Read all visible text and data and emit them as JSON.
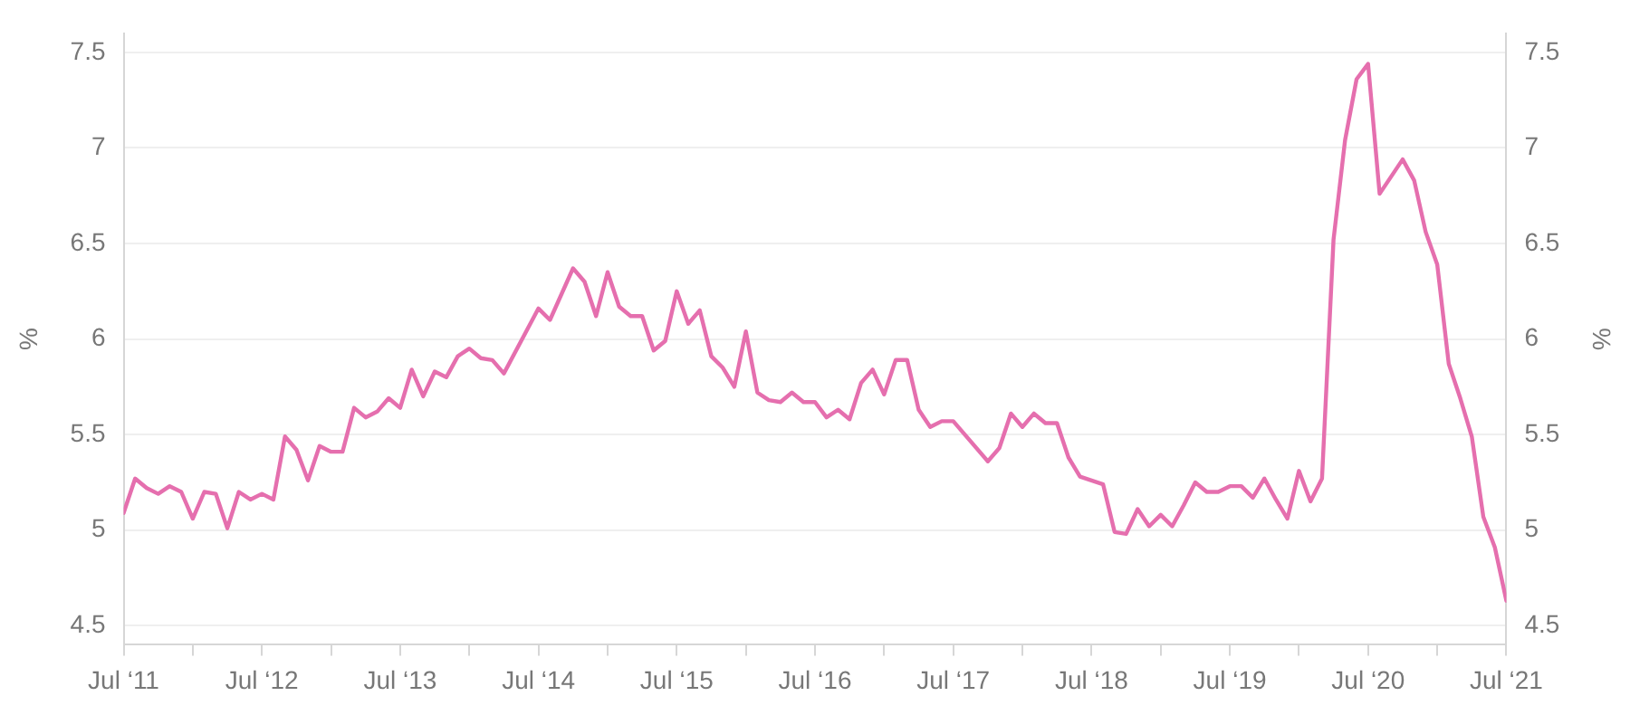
{
  "chart_data": {
    "type": "line",
    "ylabel": "%",
    "y2label": "%",
    "x": [
      "2011-07",
      "2011-08",
      "2011-09",
      "2011-10",
      "2011-11",
      "2011-12",
      "2012-01",
      "2012-02",
      "2012-03",
      "2012-04",
      "2012-05",
      "2012-06",
      "2012-07",
      "2012-08",
      "2012-09",
      "2012-10",
      "2012-11",
      "2012-12",
      "2013-01",
      "2013-02",
      "2013-03",
      "2013-04",
      "2013-05",
      "2013-06",
      "2013-07",
      "2013-08",
      "2013-09",
      "2013-10",
      "2013-11",
      "2013-12",
      "2014-01",
      "2014-02",
      "2014-03",
      "2014-04",
      "2014-07",
      "2014-08",
      "2014-10",
      "2014-11",
      "2014-12",
      "2015-01",
      "2015-02",
      "2015-03",
      "2015-04",
      "2015-05",
      "2015-06",
      "2015-07",
      "2015-08",
      "2015-09",
      "2015-10",
      "2015-11",
      "2015-12",
      "2016-01",
      "2016-02",
      "2016-03",
      "2016-04",
      "2016-05",
      "2016-06",
      "2016-07",
      "2016-08",
      "2016-09",
      "2016-10",
      "2016-11",
      "2016-12",
      "2017-01",
      "2017-02",
      "2017-03",
      "2017-04",
      "2017-05",
      "2017-06",
      "2017-07",
      "2017-10",
      "2017-11",
      "2017-12",
      "2018-01",
      "2018-02",
      "2018-03",
      "2018-04",
      "2018-05",
      "2018-06",
      "2018-07",
      "2018-08",
      "2018-09",
      "2018-10",
      "2018-11",
      "2018-12",
      "2019-01",
      "2019-02",
      "2019-03",
      "2019-04",
      "2019-05",
      "2019-06",
      "2019-07",
      "2019-08",
      "2019-09",
      "2019-10",
      "2019-11",
      "2019-12",
      "2020-01",
      "2020-02",
      "2020-03",
      "2020-04",
      "2020-05",
      "2020-06",
      "2020-07",
      "2020-08",
      "2020-09",
      "2020-10",
      "2020-11",
      "2020-12",
      "2021-01",
      "2021-02",
      "2021-03",
      "2021-04",
      "2021-05",
      "2021-06",
      "2021-07"
    ],
    "series": [
      {
        "color": "#e56fae",
        "values": [
          5.09,
          5.27,
          5.22,
          5.19,
          5.23,
          5.2,
          5.06,
          5.2,
          5.19,
          5.01,
          5.2,
          5.16,
          5.19,
          5.16,
          5.49,
          5.42,
          5.26,
          5.44,
          5.41,
          5.41,
          5.64,
          5.59,
          5.62,
          5.69,
          5.64,
          5.84,
          5.7,
          5.83,
          5.8,
          5.91,
          5.95,
          5.9,
          5.89,
          5.82,
          6.16,
          6.1,
          6.37,
          6.3,
          6.12,
          6.35,
          6.17,
          6.12,
          6.12,
          5.94,
          5.99,
          6.25,
          6.08,
          6.15,
          5.91,
          5.85,
          5.75,
          6.04,
          5.72,
          5.68,
          5.67,
          5.72,
          5.67,
          5.67,
          5.59,
          5.63,
          5.58,
          5.77,
          5.84,
          5.71,
          5.89,
          5.89,
          5.63,
          5.54,
          5.57,
          5.57,
          5.36,
          5.43,
          5.61,
          5.54,
          5.61,
          5.56,
          5.56,
          5.38,
          5.28,
          5.26,
          5.24,
          4.99,
          4.98,
          5.11,
          5.02,
          5.08,
          5.02,
          5.13,
          5.25,
          5.2,
          5.2,
          5.23,
          5.23,
          5.17,
          5.27,
          5.16,
          5.06,
          5.31,
          5.15,
          5.27,
          6.52,
          7.04,
          7.36,
          7.44,
          6.76,
          6.85,
          6.94,
          6.83,
          6.56,
          6.39,
          5.87,
          5.69,
          5.49,
          5.07,
          4.91,
          4.63
        ]
      }
    ],
    "xlim": [
      "2011-07",
      "2021-07"
    ],
    "xticks": [
      {
        "value": "2011-07",
        "label": "Jul ‘11"
      },
      {
        "value": "2012-01",
        "label": null
      },
      {
        "value": "2012-07",
        "label": "Jul ‘12"
      },
      {
        "value": "2013-01",
        "label": null
      },
      {
        "value": "2013-07",
        "label": "Jul ‘13"
      },
      {
        "value": "2014-01",
        "label": null
      },
      {
        "value": "2014-07",
        "label": "Jul ‘14"
      },
      {
        "value": "2015-01",
        "label": null
      },
      {
        "value": "2015-07",
        "label": "Jul ‘15"
      },
      {
        "value": "2016-01",
        "label": null
      },
      {
        "value": "2016-07",
        "label": "Jul ‘16"
      },
      {
        "value": "2017-01",
        "label": null
      },
      {
        "value": "2017-07",
        "label": "Jul ‘17"
      },
      {
        "value": "2018-01",
        "label": null
      },
      {
        "value": "2018-07",
        "label": "Jul ‘18"
      },
      {
        "value": "2019-01",
        "label": null
      },
      {
        "value": "2019-07",
        "label": "Jul ‘19"
      },
      {
        "value": "2020-01",
        "label": null
      },
      {
        "value": "2020-07",
        "label": "Jul ‘20"
      },
      {
        "value": "2021-01",
        "label": null
      },
      {
        "value": "2021-07",
        "label": "Jul ‘21"
      }
    ],
    "ylim": [
      4.4,
      7.6
    ],
    "yticks": [
      4.5,
      5,
      5.5,
      6,
      6.5,
      7,
      7.5
    ],
    "y2lim": [
      4.4,
      7.6
    ],
    "y2ticks": [
      4.5,
      5,
      5.5,
      6,
      6.5,
      7,
      7.5
    ],
    "grid": "y",
    "legend": false,
    "marker": "none",
    "line_style": "solid"
  }
}
